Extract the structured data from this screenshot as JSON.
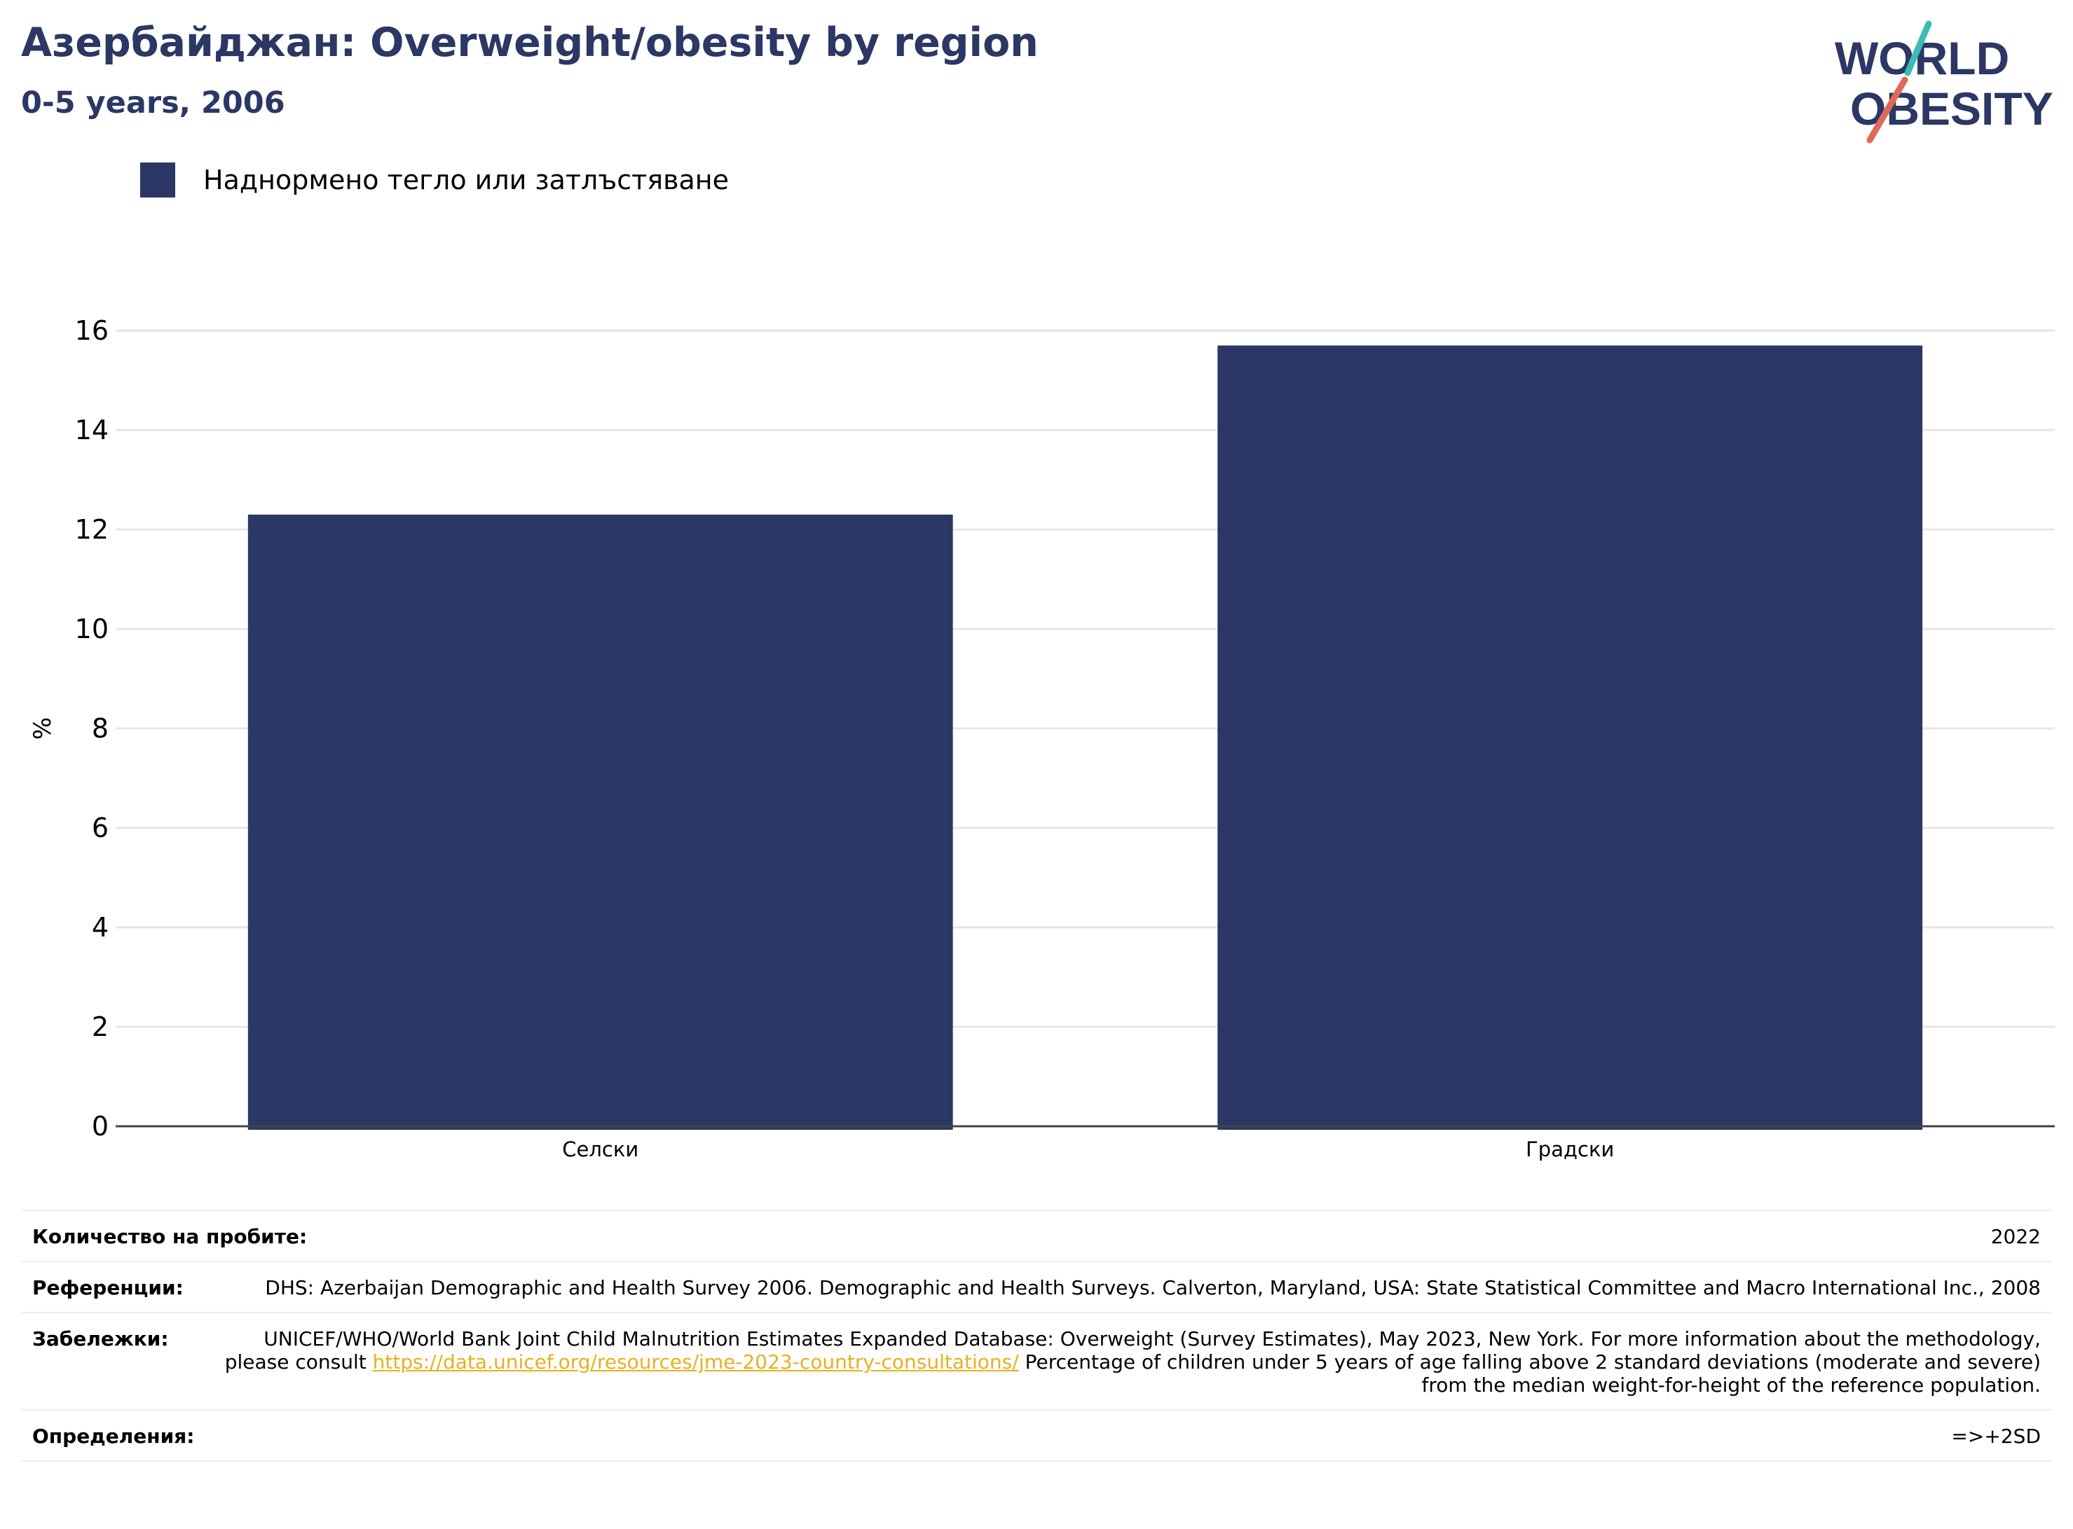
{
  "header": {
    "title": "Азербайджан: Overweight/obesity by region",
    "subtitle": "0-5 years, 2006"
  },
  "logo": {
    "line1": "WORLD",
    "line2": "OBESITY",
    "colors": {
      "text": "#2b3764",
      "slash_top": "#3cbcb4",
      "slash_bottom": "#e06a5a"
    }
  },
  "legend": {
    "label": "Наднормено тегло или затлъстяване",
    "color": "#2b3764"
  },
  "chart_data": {
    "type": "bar",
    "categories": [
      "Селски",
      "Градски"
    ],
    "series": [
      {
        "name": "Наднормено тегло или затлъстяване",
        "values": [
          12.3,
          15.7
        ],
        "color": "#2b3764"
      }
    ],
    "ylabel": "%",
    "ylim": [
      0,
      16
    ],
    "yticks": [
      "0",
      "2",
      "4",
      "6",
      "8",
      "10",
      "12",
      "14",
      "16"
    ],
    "grid": true,
    "legend_position": "top-left"
  },
  "meta": {
    "sample_label": "Количество на пробите:",
    "sample_value": "2022",
    "references_label": "Референции:",
    "references_value": "DHS: Azerbaijan Demographic and Health Survey 2006. Demographic and Health Surveys. Calverton, Maryland, USA: State Statistical Committee and Macro International Inc., 2008",
    "notes_label": "Забележки:",
    "notes_before": "UNICEF/WHO/World Bank Joint Child Malnutrition Estimates Expanded Database: Overweight (Survey Estimates), May 2023, New York. For more information about the methodology, please consult ",
    "notes_link": "https://data.unicef.org/resources/jme-2023-country-consultations/",
    "notes_after": " Percentage of children under 5 years of age falling above 2 standard deviations (moderate and severe) from the median weight-for-height of the reference population.",
    "definitions_label": "Определения:",
    "definitions_value": "=>+2SD"
  }
}
